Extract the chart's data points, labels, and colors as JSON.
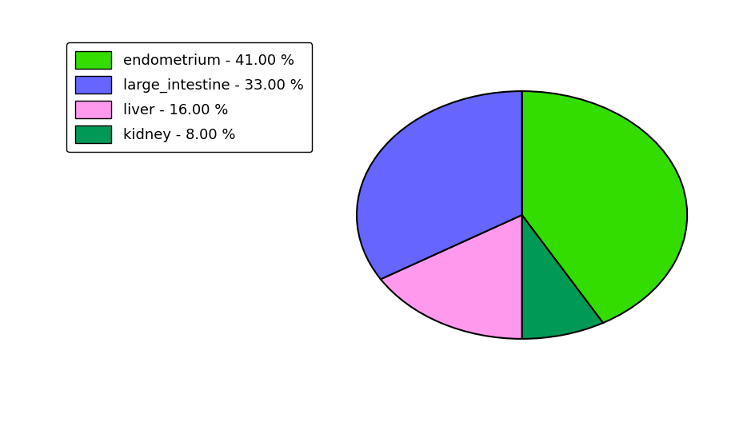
{
  "labels": [
    "endometrium",
    "kidney",
    "liver",
    "large_intestine"
  ],
  "values": [
    41.0,
    8.0,
    16.0,
    33.0
  ],
  "colors": [
    "#33dd00",
    "#009955",
    "#ff99ee",
    "#6666ff"
  ],
  "legend_labels": [
    "endometrium - 41.00 %",
    "large_intestine - 33.00 %",
    "liver - 16.00 %",
    "kidney - 8.00 %"
  ],
  "legend_colors": [
    "#33dd00",
    "#6666ff",
    "#ff99ee",
    "#009955"
  ],
  "startangle": 90,
  "counterclock": false,
  "figsize": [
    9.39,
    5.38
  ],
  "dpi": 100,
  "ellipse_ratio": 0.75
}
